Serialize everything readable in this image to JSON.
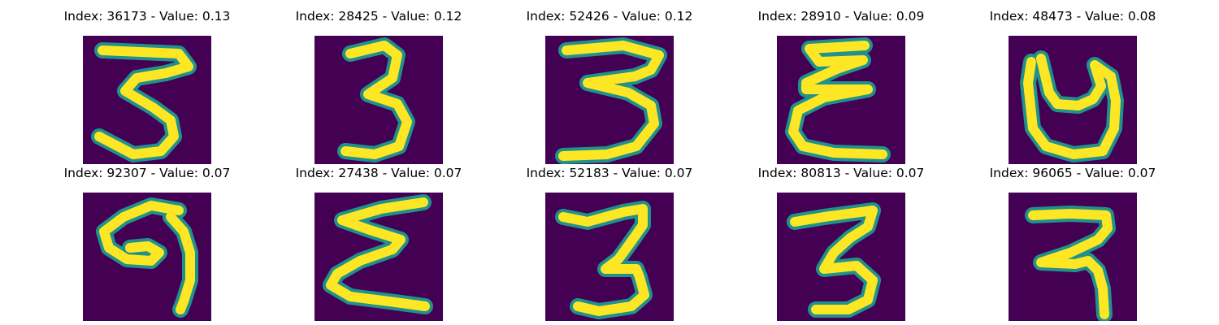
{
  "colors": {
    "background": "#440154",
    "stroke_core": "#fde725",
    "stroke_edge": "#21918c"
  },
  "samples": [
    {
      "index": "36173",
      "value": "0.13",
      "title": "Index: 36173 - Value: 0.13",
      "glyph": "digit-3-zigzag"
    },
    {
      "index": "28425",
      "value": "0.12",
      "title": "Index: 28425 - Value: 0.12",
      "glyph": "digit-3"
    },
    {
      "index": "52426",
      "value": "0.12",
      "title": "Index: 52426 - Value: 0.12",
      "glyph": "digit-3-wide"
    },
    {
      "index": "28910",
      "value": "0.09",
      "title": "Index: 28910 - Value: 0.09",
      "glyph": "epsilon-looped"
    },
    {
      "index": "48473",
      "value": "0.08",
      "title": "Index: 48473 - Value: 0.08",
      "glyph": "open-loop"
    },
    {
      "index": "92307",
      "value": "0.07",
      "title": "Index: 92307 - Value: 0.07",
      "glyph": "digit-9-hook"
    },
    {
      "index": "27438",
      "value": "0.07",
      "title": "Index: 27438 - Value: 0.07",
      "glyph": "sigma-zigzag"
    },
    {
      "index": "52183",
      "value": "0.07",
      "title": "Index: 52183 - Value: 0.07",
      "glyph": "digit-3-tall"
    },
    {
      "index": "80813",
      "value": "0.07",
      "title": "Index: 80813 - Value: 0.07",
      "glyph": "digit-3-bold"
    },
    {
      "index": "96065",
      "value": "0.07",
      "title": "Index: 96065 - Value: 0.07",
      "glyph": "hook-2"
    }
  ]
}
